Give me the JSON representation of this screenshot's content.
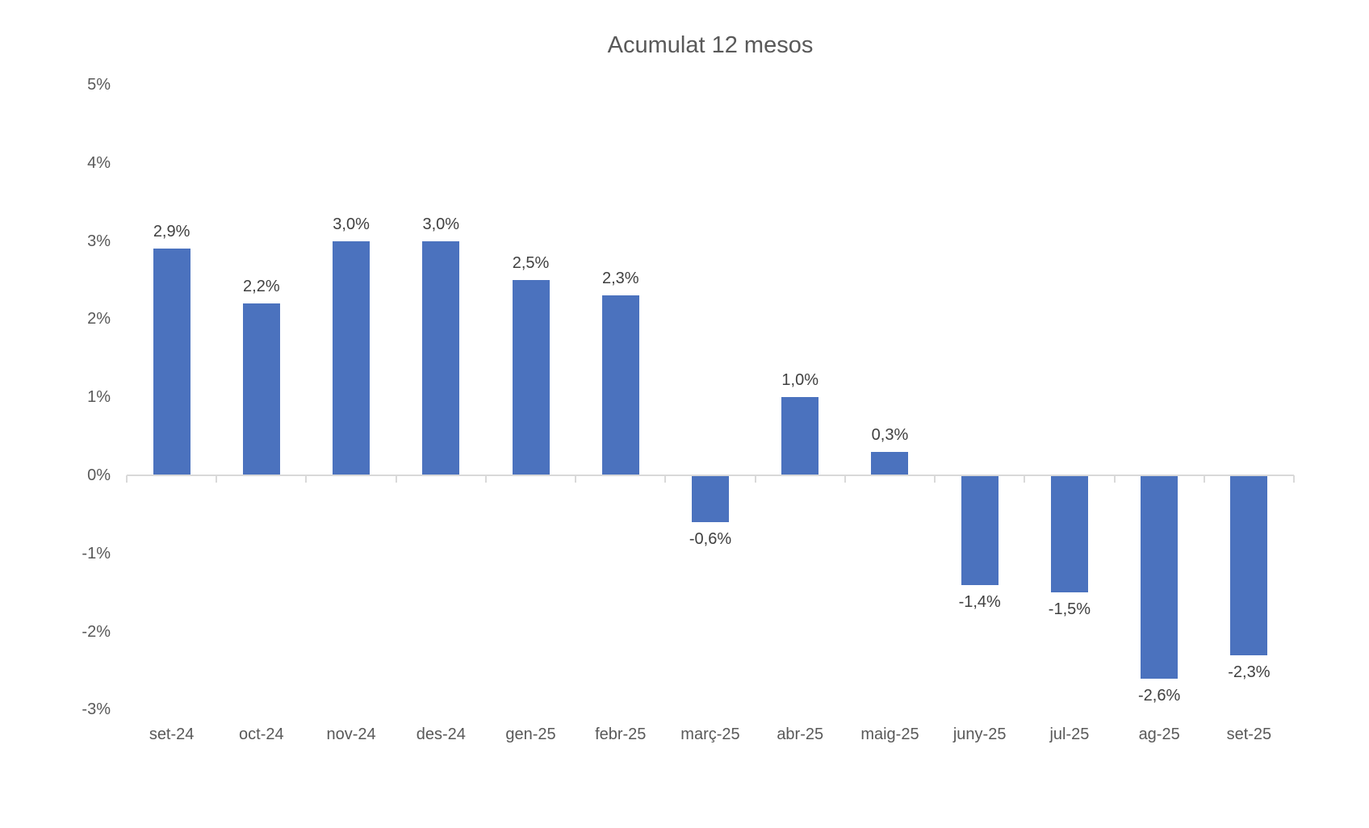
{
  "chart_data": {
    "type": "bar",
    "title": "Acumulat 12 mesos",
    "categories": [
      "set-24",
      "oct-24",
      "nov-24",
      "des-24",
      "gen-25",
      "febr-25",
      "març-25",
      "abr-25",
      "maig-25",
      "juny-25",
      "jul-25",
      "ag-25",
      "set-25"
    ],
    "values": [
      2.9,
      2.2,
      3.0,
      3.0,
      2.5,
      2.3,
      -0.6,
      1.0,
      0.3,
      -1.4,
      -1.5,
      -2.6,
      -2.3
    ],
    "data_labels": [
      "2,9%",
      "2,2%",
      "3,0%",
      "3,0%",
      "2,5%",
      "2,3%",
      "-0,6%",
      "1,0%",
      "0,3%",
      "-1,4%",
      "-1,5%",
      "-2,6%",
      "-2,3%"
    ],
    "xlabel": "",
    "ylabel": "",
    "ylim": [
      -3,
      5
    ],
    "ytick_values": [
      5,
      4,
      3,
      2,
      1,
      0,
      -1,
      -2,
      -3
    ],
    "ytick_labels": [
      "5%",
      "4%",
      "3%",
      "2%",
      "1%",
      "0%",
      "-1%",
      "-2%",
      "-3%"
    ],
    "grid": false,
    "legend": false,
    "bar_color": "#4b72be",
    "axis_line_color": "#d9d9d9",
    "title_color": "#595959",
    "axis_text_color": "#595959",
    "data_label_color": "#404040"
  }
}
